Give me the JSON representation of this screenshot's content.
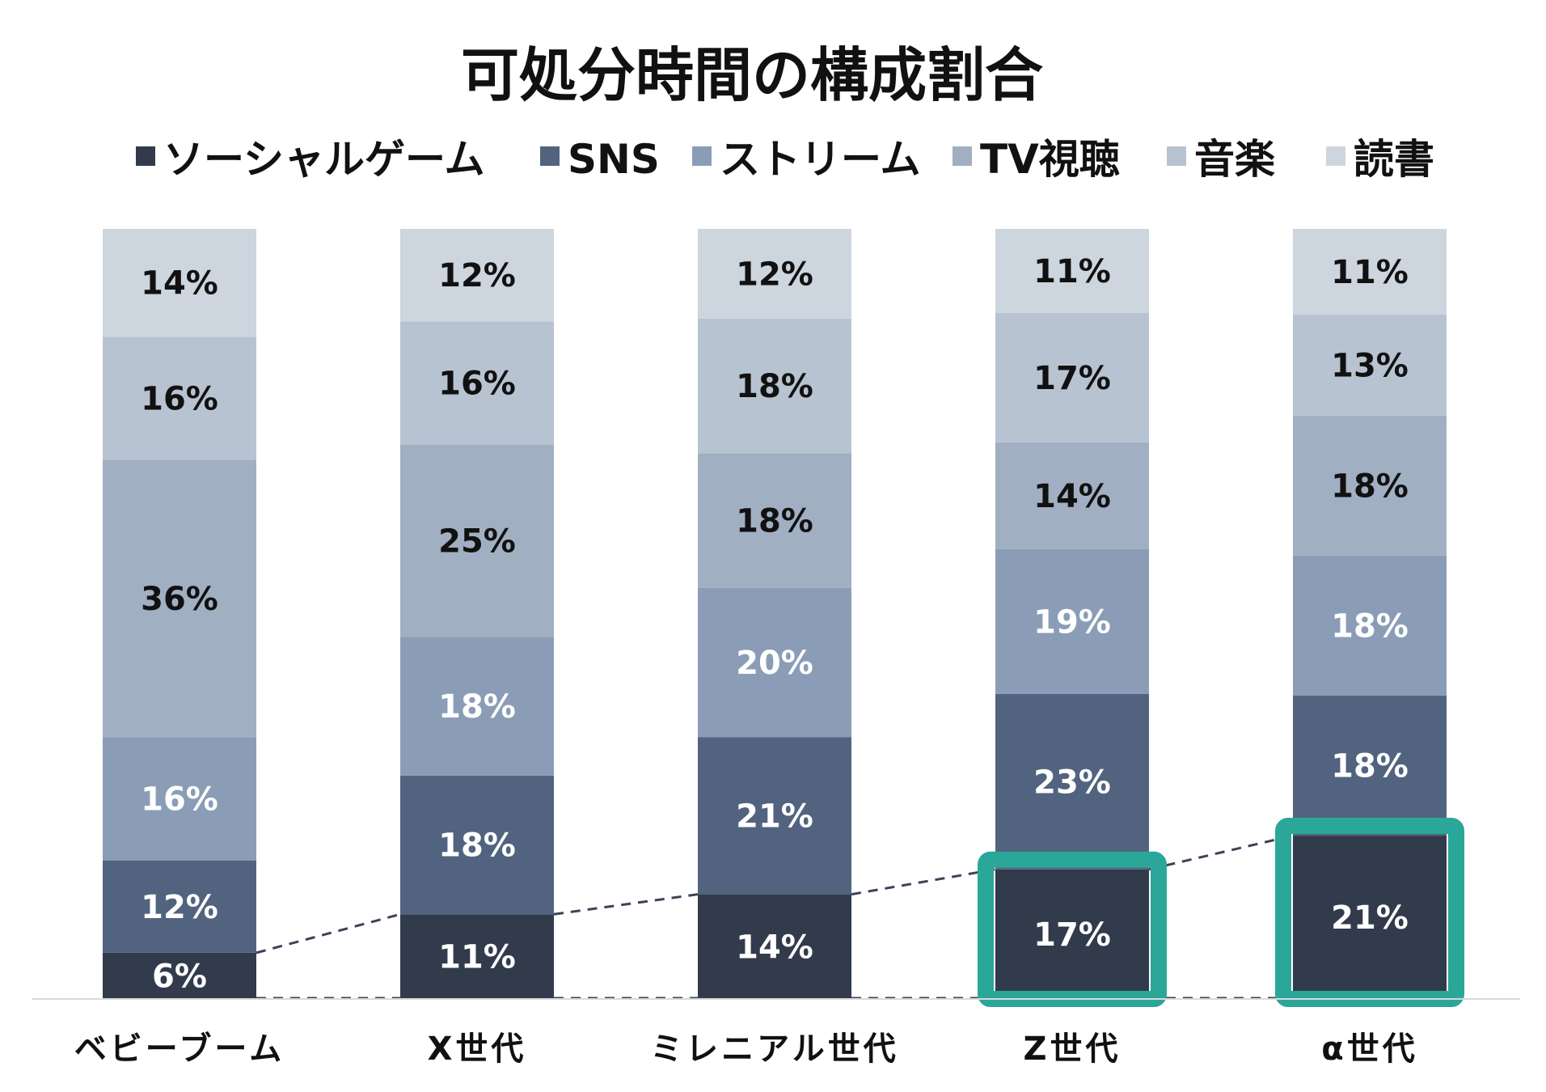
{
  "chart_data": {
    "type": "bar",
    "stacked": true,
    "title": "可処分時間の構成割合",
    "legend_position": "top",
    "categories": [
      "ベビーブーム",
      "X世代",
      "ミレニアル世代",
      "Z世代",
      "α世代"
    ],
    "series": [
      {
        "name": "ソーシャルゲーム",
        "color": "#323b4c",
        "label_color": "#ffffff",
        "values": [
          6,
          11,
          14,
          17,
          21
        ]
      },
      {
        "name": "SNS",
        "color": "#51637f",
        "label_color": "#ffffff",
        "values": [
          12,
          18,
          21,
          23,
          18
        ]
      },
      {
        "name": "ストリーム",
        "color": "#8b9db6",
        "label_color": "#ffffff",
        "values": [
          16,
          18,
          20,
          19,
          18
        ]
      },
      {
        "name": "TV視聴",
        "color": "#a1afc2",
        "label_color": "#111111",
        "values": [
          36,
          25,
          18,
          14,
          18
        ]
      },
      {
        "name": "音楽",
        "color": "#b8c3d1",
        "label_color": "#111111",
        "values": [
          16,
          16,
          18,
          17,
          13
        ]
      },
      {
        "name": "読書",
        "color": "#cdd5df",
        "label_color": "#111111",
        "values": [
          14,
          12,
          12,
          11,
          11
        ]
      }
    ],
    "value_suffix": "%",
    "highlighted": [
      {
        "series": "ソーシャルゲーム",
        "category": "Z世代"
      },
      {
        "series": "ソーシャルゲーム",
        "category": "α世代"
      }
    ],
    "highlight_color": "#2ba79a",
    "connector_style": "dashed"
  }
}
